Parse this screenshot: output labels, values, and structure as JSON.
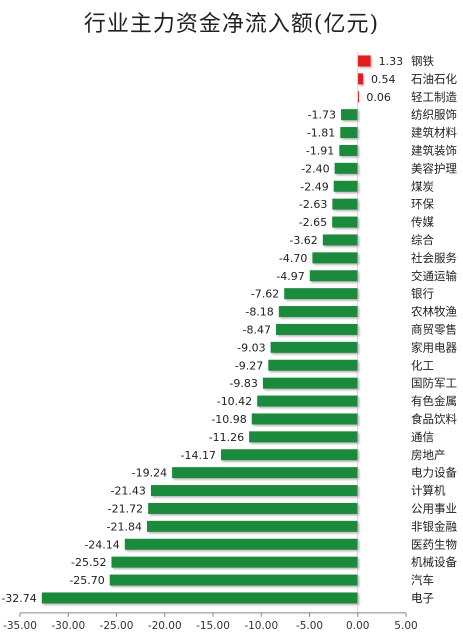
{
  "chart_data": {
    "type": "bar",
    "orientation": "horizontal",
    "title": "行业主力资金净流入额(亿元)",
    "xlabel": "",
    "ylabel": "",
    "xlim": [
      -35,
      5
    ],
    "xticks": [
      "-35.00",
      "-30.00",
      "-25.00",
      "-20.00",
      "-15.00",
      "-10.00",
      "-5.00",
      "0.00",
      "5.00"
    ],
    "grid": false,
    "legend": "none",
    "colors": {
      "positive": "#e41a1c",
      "negative": "#1a8a3e"
    },
    "categories": [
      "钢铁",
      "石油石化",
      "轻工制造",
      "纺织服饰",
      "建筑材料",
      "建筑装饰",
      "美容护理",
      "煤炭",
      "环保",
      "传媒",
      "综合",
      "社会服务",
      "交通运输",
      "银行",
      "农林牧渔",
      "商贸零售",
      "家用电器",
      "化工",
      "国防军工",
      "有色金属",
      "食品饮料",
      "通信",
      "房地产",
      "电力设备",
      "计算机",
      "公用事业",
      "非银金融",
      "医药生物",
      "机械设备",
      "汽车",
      "电子"
    ],
    "values": [
      1.33,
      0.54,
      0.06,
      -1.73,
      -1.81,
      -1.91,
      -2.4,
      -2.49,
      -2.63,
      -2.65,
      -3.62,
      -4.7,
      -4.97,
      -7.62,
      -8.18,
      -8.47,
      -9.03,
      -9.27,
      -9.83,
      -10.42,
      -10.98,
      -11.26,
      -14.17,
      -19.24,
      -21.43,
      -21.72,
      -21.84,
      -24.14,
      -25.52,
      -25.7,
      -32.74
    ],
    "value_labels": [
      "1.33",
      "0.54",
      "0.06",
      "-1.73",
      "-1.81",
      "-1.91",
      "-2.40",
      "-2.49",
      "-2.63",
      "-2.65",
      "-3.62",
      "-4.70",
      "-4.97",
      "-7.62",
      "-8.18",
      "-8.47",
      "-9.03",
      "-9.27",
      "-9.83",
      "-10.42",
      "-10.98",
      "-11.26",
      "-14.17",
      "-19.24",
      "-21.43",
      "-21.72",
      "-21.84",
      "-24.14",
      "-25.52",
      "-25.70",
      "-32.74"
    ]
  }
}
